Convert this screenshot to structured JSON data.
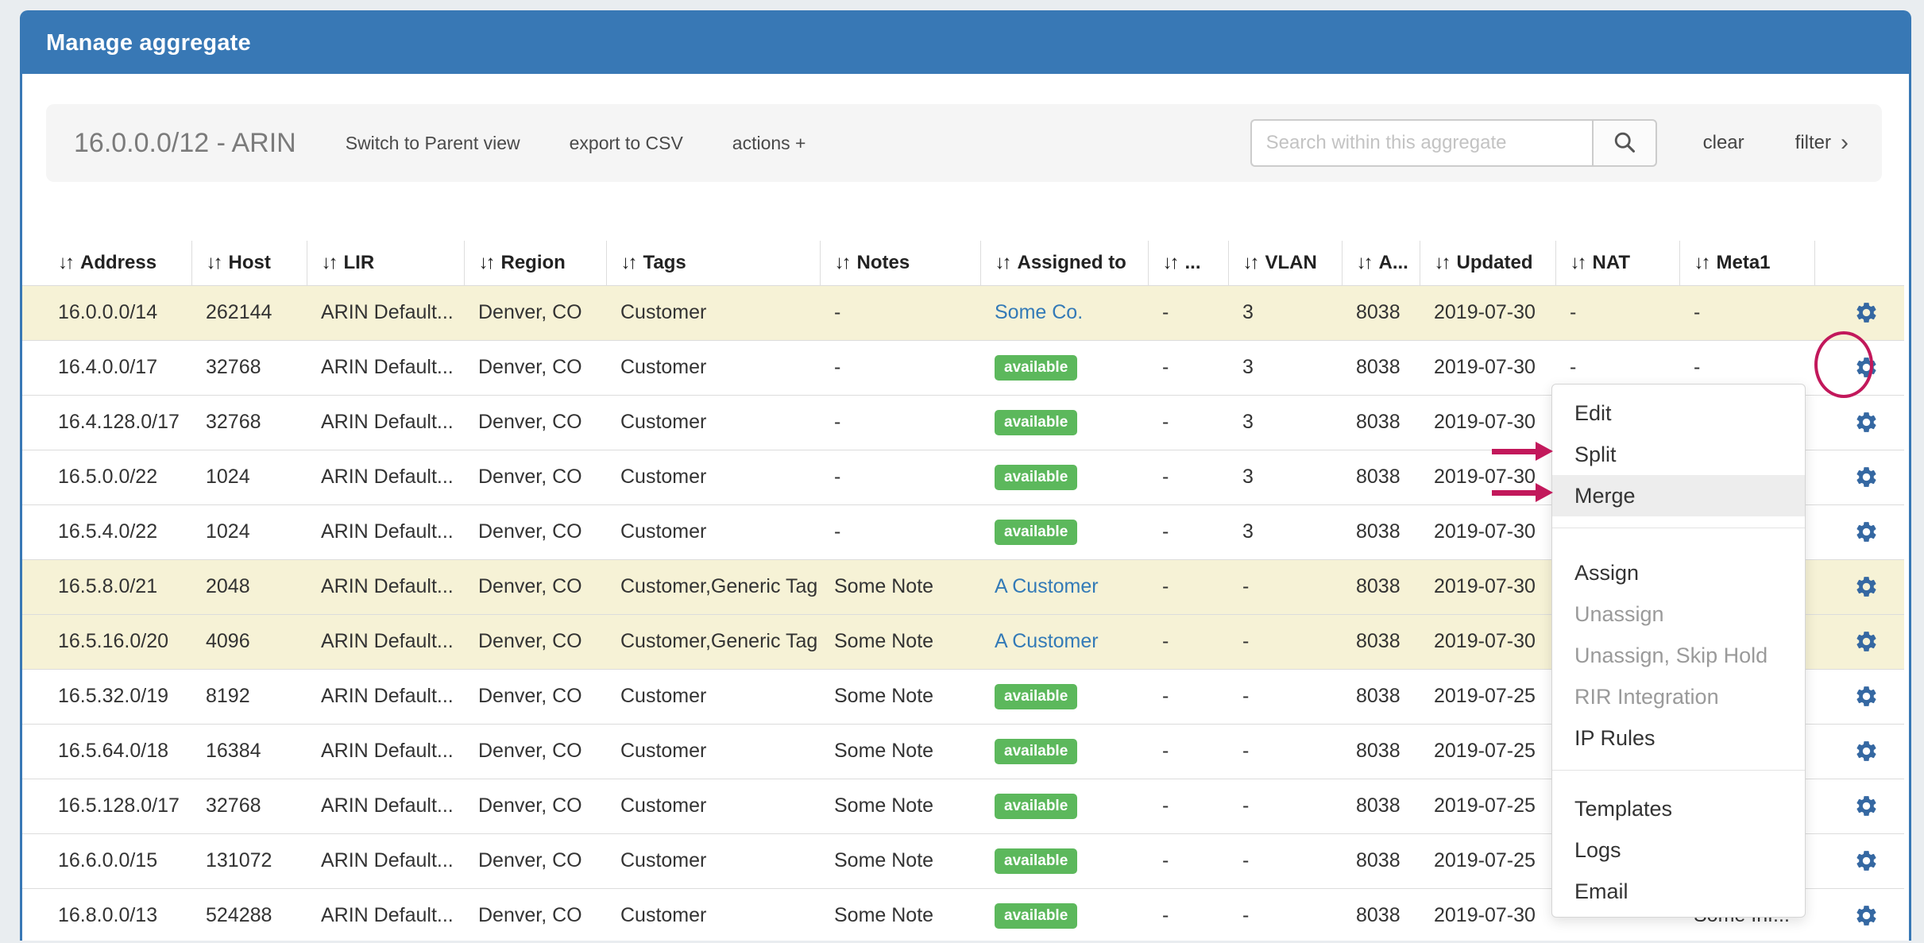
{
  "panel": {
    "title": "Manage aggregate"
  },
  "toolbar": {
    "aggregate_label": "16.0.0.0/12 - ARIN",
    "switch_view_label": "Switch to Parent view",
    "export_csv_label": "export to CSV",
    "actions_label": "actions +",
    "search_placeholder": "Search within this aggregate",
    "search_value": "",
    "clear_label": "clear",
    "filter_label": "filter"
  },
  "icons": {
    "sort": "↓↑",
    "chevron_right": "›",
    "search": "search-icon",
    "gear": "gear-icon"
  },
  "colors": {
    "panel_blue": "#3878b5",
    "badge_green": "#5cb85c",
    "link_blue": "#337ab7",
    "gear_blue": "#3568a2",
    "annotation_pink": "#c2185b",
    "row_highlight": "#f6f2d6"
  },
  "table": {
    "columns": [
      {
        "key": "address",
        "label": "Address"
      },
      {
        "key": "host",
        "label": "Host"
      },
      {
        "key": "lir",
        "label": "LIR"
      },
      {
        "key": "region",
        "label": "Region"
      },
      {
        "key": "tags",
        "label": "Tags"
      },
      {
        "key": "notes",
        "label": "Notes"
      },
      {
        "key": "assigned-to",
        "label": "Assigned to"
      },
      {
        "key": "more",
        "label": "..."
      },
      {
        "key": "vlan",
        "label": "VLAN"
      },
      {
        "key": "a",
        "label": "A..."
      },
      {
        "key": "updated",
        "label": "Updated"
      },
      {
        "key": "nat",
        "label": "NAT"
      },
      {
        "key": "meta1",
        "label": "Meta1"
      },
      {
        "key": "actions",
        "label": ""
      }
    ],
    "rows": [
      {
        "address": "16.0.0.0/14",
        "host": "262144",
        "lir": "ARIN Default...",
        "region": "Denver, CO",
        "tags": "Customer",
        "notes": "-",
        "assigned": {
          "type": "link",
          "text": "Some Co."
        },
        "more": "-",
        "vlan": "3",
        "a": "8038",
        "updated": "2019-07-30",
        "nat": "-",
        "meta1": "-",
        "highlighted": true,
        "circled": false
      },
      {
        "address": "16.4.0.0/17",
        "host": "32768",
        "lir": "ARIN Default...",
        "region": "Denver, CO",
        "tags": "Customer",
        "notes": "-",
        "assigned": {
          "type": "badge",
          "text": "available"
        },
        "more": "-",
        "vlan": "3",
        "a": "8038",
        "updated": "2019-07-30",
        "nat": "-",
        "meta1": "-",
        "highlighted": false,
        "circled": true
      },
      {
        "address": "16.4.128.0/17",
        "host": "32768",
        "lir": "ARIN Default...",
        "region": "Denver, CO",
        "tags": "Customer",
        "notes": "-",
        "assigned": {
          "type": "badge",
          "text": "available"
        },
        "more": "-",
        "vlan": "3",
        "a": "8038",
        "updated": "2019-07-30",
        "nat": "-",
        "meta1": "-",
        "highlighted": false,
        "circled": false
      },
      {
        "address": "16.5.0.0/22",
        "host": "1024",
        "lir": "ARIN Default...",
        "region": "Denver, CO",
        "tags": "Customer",
        "notes": "-",
        "assigned": {
          "type": "badge",
          "text": "available"
        },
        "more": "-",
        "vlan": "3",
        "a": "8038",
        "updated": "2019-07-30",
        "nat": "-",
        "meta1": "-",
        "highlighted": false,
        "circled": false
      },
      {
        "address": "16.5.4.0/22",
        "host": "1024",
        "lir": "ARIN Default...",
        "region": "Denver, CO",
        "tags": "Customer",
        "notes": "-",
        "assigned": {
          "type": "badge",
          "text": "available"
        },
        "more": "-",
        "vlan": "3",
        "a": "8038",
        "updated": "2019-07-30",
        "nat": "-",
        "meta1": "-",
        "highlighted": false,
        "circled": false
      },
      {
        "address": "16.5.8.0/21",
        "host": "2048",
        "lir": "ARIN Default...",
        "region": "Denver, CO",
        "tags": "Customer,Generic Tag",
        "notes": "Some Note",
        "assigned": {
          "type": "link",
          "text": "A Customer"
        },
        "more": "-",
        "vlan": "-",
        "a": "8038",
        "updated": "2019-07-30",
        "nat": "-",
        "meta1": "-",
        "highlighted": true,
        "circled": false
      },
      {
        "address": "16.5.16.0/20",
        "host": "4096",
        "lir": "ARIN Default...",
        "region": "Denver, CO",
        "tags": "Customer,Generic Tag",
        "notes": "Some Note",
        "assigned": {
          "type": "link",
          "text": "A Customer"
        },
        "more": "-",
        "vlan": "-",
        "a": "8038",
        "updated": "2019-07-30",
        "nat": "-",
        "meta1": "-",
        "highlighted": true,
        "circled": false
      },
      {
        "address": "16.5.32.0/19",
        "host": "8192",
        "lir": "ARIN Default...",
        "region": "Denver, CO",
        "tags": "Customer",
        "notes": "Some Note",
        "assigned": {
          "type": "badge",
          "text": "available"
        },
        "more": "-",
        "vlan": "-",
        "a": "8038",
        "updated": "2019-07-25",
        "nat": "-",
        "meta1": "-",
        "highlighted": false,
        "circled": false
      },
      {
        "address": "16.5.64.0/18",
        "host": "16384",
        "lir": "ARIN Default...",
        "region": "Denver, CO",
        "tags": "Customer",
        "notes": "Some Note",
        "assigned": {
          "type": "badge",
          "text": "available"
        },
        "more": "-",
        "vlan": "-",
        "a": "8038",
        "updated": "2019-07-25",
        "nat": "-",
        "meta1": "-",
        "highlighted": false,
        "circled": false
      },
      {
        "address": "16.5.128.0/17",
        "host": "32768",
        "lir": "ARIN Default...",
        "region": "Denver, CO",
        "tags": "Customer",
        "notes": "Some Note",
        "assigned": {
          "type": "badge",
          "text": "available"
        },
        "more": "-",
        "vlan": "-",
        "a": "8038",
        "updated": "2019-07-25",
        "nat": "-",
        "meta1": "-",
        "highlighted": false,
        "circled": false
      },
      {
        "address": "16.6.0.0/15",
        "host": "131072",
        "lir": "ARIN Default...",
        "region": "Denver, CO",
        "tags": "Customer",
        "notes": "Some Note",
        "assigned": {
          "type": "badge",
          "text": "available"
        },
        "more": "-",
        "vlan": "-",
        "a": "8038",
        "updated": "2019-07-25",
        "nat": "-",
        "meta1": "-",
        "highlighted": false,
        "circled": false
      },
      {
        "address": "16.8.0.0/13",
        "host": "524288",
        "lir": "ARIN Default...",
        "region": "Denver, CO",
        "tags": "Customer",
        "notes": "Some Note",
        "assigned": {
          "type": "badge",
          "text": "available"
        },
        "more": "-",
        "vlan": "-",
        "a": "8038",
        "updated": "2019-07-30",
        "nat": "-",
        "meta1": "Some Inf...",
        "highlighted": false,
        "circled": false
      }
    ]
  },
  "context_menu": {
    "groups": [
      {
        "items": [
          {
            "label": "Edit",
            "disabled": false,
            "hovered": false
          },
          {
            "label": "Split",
            "disabled": false,
            "hovered": false
          },
          {
            "label": "Merge",
            "disabled": false,
            "hovered": true
          }
        ]
      },
      {
        "items": [
          {
            "label": "Assign",
            "disabled": false,
            "hovered": false
          },
          {
            "label": "Unassign",
            "disabled": true,
            "hovered": false
          },
          {
            "label": "Unassign, Skip Hold",
            "disabled": true,
            "hovered": false
          },
          {
            "label": "RIR Integration",
            "disabled": true,
            "hovered": false
          },
          {
            "label": "IP Rules",
            "disabled": false,
            "hovered": false
          }
        ]
      },
      {
        "items": [
          {
            "label": "Templates",
            "disabled": false,
            "hovered": false
          },
          {
            "label": "Logs",
            "disabled": false,
            "hovered": false
          },
          {
            "label": "Email",
            "disabled": false,
            "hovered": false
          }
        ]
      }
    ]
  },
  "annotations": {
    "arrow_targets": [
      "Split",
      "Merge"
    ],
    "circled_row": "16.4.0.0/17"
  }
}
